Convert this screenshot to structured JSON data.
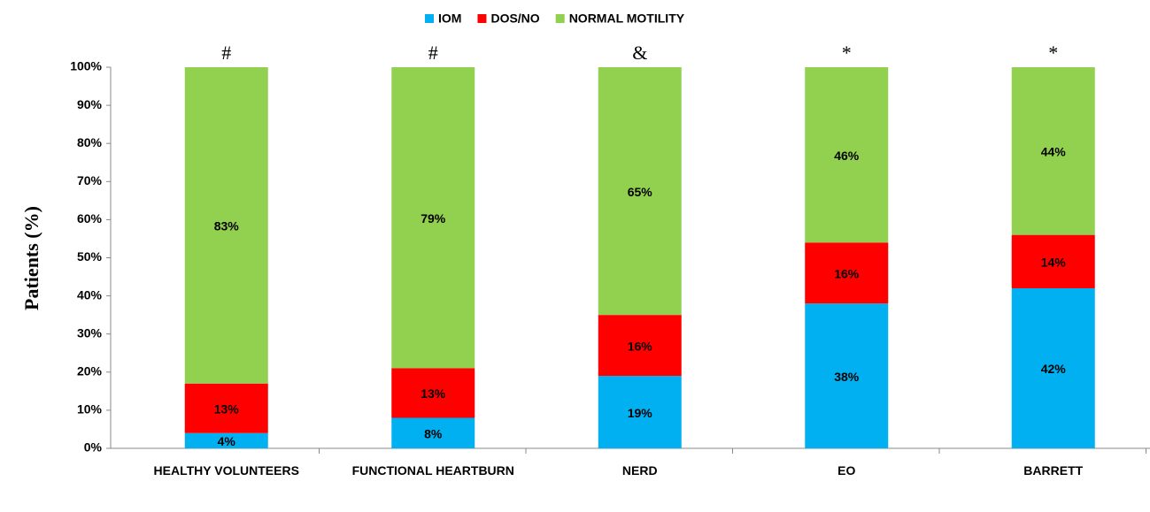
{
  "chart_data": {
    "type": "stacked_bar",
    "y_label": "Patients (%)",
    "categories": [
      "HEALTHY VOLUNTEERS",
      "FUNCTIONAL HEARTBURN",
      "NERD",
      "EO",
      "BARRETT"
    ],
    "annotations": [
      "#",
      "#",
      "&",
      "*",
      "*"
    ],
    "series": [
      {
        "name": "IOM",
        "color": "#00b0f0",
        "values": [
          4,
          8,
          19,
          38,
          42
        ],
        "value_labels": [
          "4%",
          "8%",
          "19%",
          "38%",
          "42%"
        ]
      },
      {
        "name": "DOS/NO",
        "color": "#ff0000",
        "values": [
          13,
          13,
          16,
          16,
          14
        ],
        "value_labels": [
          "13%",
          "13%",
          "16%",
          "16%",
          "14%"
        ]
      },
      {
        "name": "NORMAL MOTILITY",
        "color": "#92d050",
        "values": [
          83,
          79,
          65,
          46,
          44
        ],
        "value_labels": [
          "83%",
          "79%",
          "65%",
          "46%",
          "44%"
        ]
      }
    ],
    "ylim": [
      0,
      100
    ],
    "yticks": [
      {
        "value": 0,
        "label": "0%"
      },
      {
        "value": 10,
        "label": "10%"
      },
      {
        "value": 20,
        "label": "20%"
      },
      {
        "value": 30,
        "label": "30%"
      },
      {
        "value": 40,
        "label": "40%"
      },
      {
        "value": 50,
        "label": "50%"
      },
      {
        "value": 60,
        "label": "60%"
      },
      {
        "value": 70,
        "label": "70%"
      },
      {
        "value": 80,
        "label": "80%"
      },
      {
        "value": 90,
        "label": "90%"
      },
      {
        "value": 100,
        "label": "100%"
      }
    ],
    "legend": "top"
  }
}
